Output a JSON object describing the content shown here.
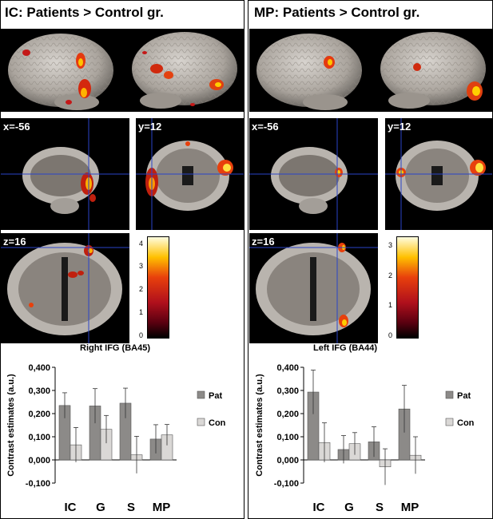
{
  "figure": {
    "left_title": "IC: Patients > Control gr.",
    "right_title": "MP: Patients > Control gr.",
    "slices": {
      "sagittal_label": "x=-56",
      "coronal_label": "y=12",
      "axial_label": "z=16"
    },
    "colorbar_left": {
      "ticks": [
        "4",
        "3",
        "2",
        "1",
        "0"
      ],
      "max": 4.3
    },
    "colorbar_right": {
      "ticks": [
        "3",
        "2",
        "1",
        "0"
      ],
      "max": 3.3
    },
    "colors": {
      "brain": "#b9b4ae",
      "activation_hot": "#ffcc00",
      "activation_mid": "#e8400c",
      "activation_low": "#a80d1a",
      "crosshair": "#2a44c8",
      "pat_bar": "#8c8a88",
      "con_bar": "#dad8d6"
    }
  },
  "chart_data": [
    {
      "type": "bar",
      "title": "Right IFG (BA45)",
      "ylabel": "Contrast estimates (a.u.)",
      "categories": [
        "IC",
        "G",
        "S",
        "MP"
      ],
      "ylim": [
        -0.1,
        0.4
      ],
      "yticks": [
        "0,400",
        "0,300",
        "0,200",
        "0,100",
        "0,000",
        "-0,100"
      ],
      "series": [
        {
          "name": "Pat",
          "values": [
            0.235,
            0.233,
            0.245,
            0.09
          ],
          "errors": [
            0.055,
            0.075,
            0.065,
            0.062
          ]
        },
        {
          "name": "Con",
          "values": [
            0.065,
            0.132,
            0.022,
            0.108
          ],
          "errors": [
            0.075,
            0.06,
            0.08,
            0.045
          ]
        }
      ]
    },
    {
      "type": "bar",
      "title": "Left IFG (BA44)",
      "ylabel": "Contrast estimates (a.u.)",
      "categories": [
        "IC",
        "G",
        "S",
        "MP"
      ],
      "ylim": [
        -0.1,
        0.4
      ],
      "yticks": [
        "0,400",
        "0,300",
        "0,200",
        "0,100",
        "0,000",
        "-0,100"
      ],
      "series": [
        {
          "name": "Pat",
          "values": [
            0.293,
            0.045,
            0.078,
            0.22
          ],
          "errors": [
            0.095,
            0.06,
            0.065,
            0.102
          ]
        },
        {
          "name": "Con",
          "values": [
            0.075,
            0.07,
            -0.03,
            0.02
          ],
          "errors": [
            0.085,
            0.048,
            0.078,
            0.08
          ]
        }
      ]
    }
  ]
}
